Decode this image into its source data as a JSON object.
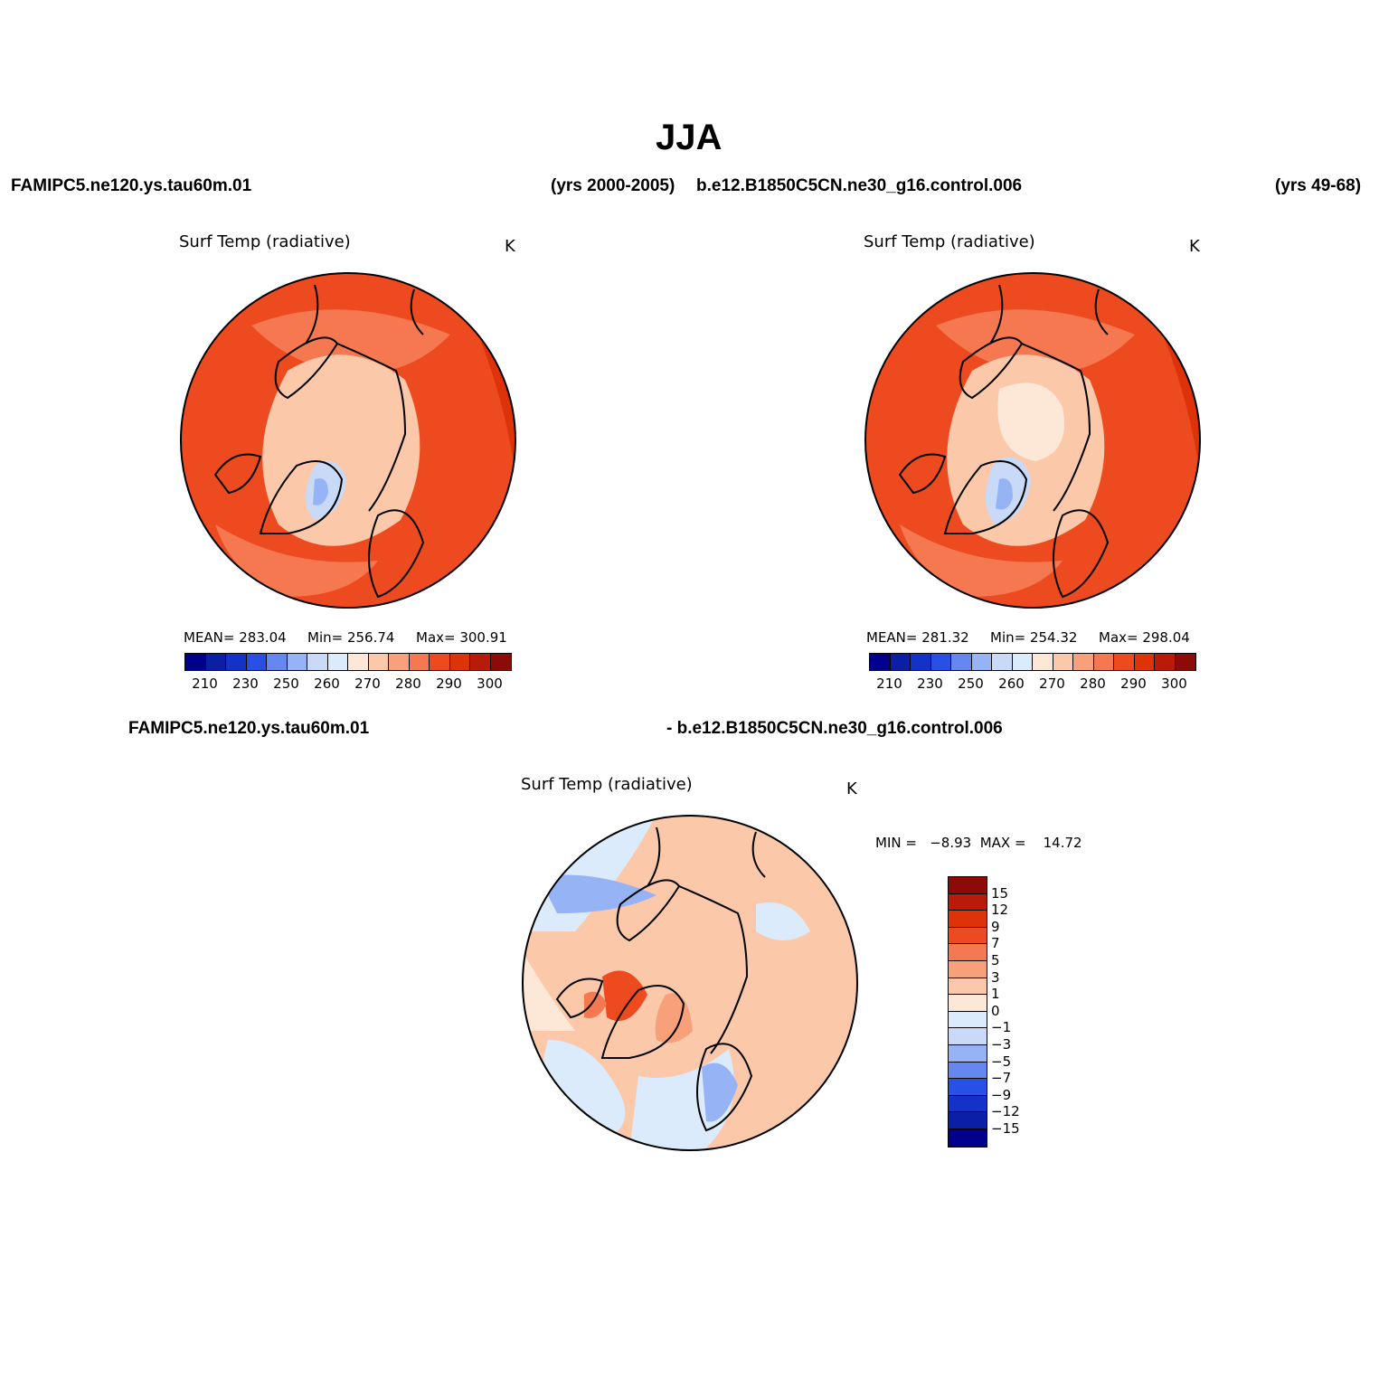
{
  "title": "JJA",
  "header": {
    "case1": "FAMIPC5.ne120.ys.tau60m.01",
    "years1": "(yrs 2000-2005)",
    "case2": "b.e12.B1850C5CN.ne30_g16.control.006",
    "years2": "(yrs 49-68)",
    "diff_case1": "FAMIPC5.ne120.ys.tau60m.01",
    "diff_case2": "- b.e12.B1850C5CN.ne30_g16.control.006"
  },
  "panels": [
    {
      "variable": "Surf Temp (radiative)",
      "units": "K",
      "stats": {
        "mean": "MEAN= 283.04",
        "min": "Min= 256.74",
        "max": "Max= 300.91"
      }
    },
    {
      "variable": "Surf Temp (radiative)",
      "units": "K",
      "stats": {
        "mean": "MEAN= 281.32",
        "min": "Min= 254.32",
        "max": "Max= 298.04"
      }
    },
    {
      "variable": "Surf Temp (radiative)",
      "units": "K",
      "stats": {
        "minmax": "MIN =   −8.93  MAX =    14.72"
      }
    }
  ],
  "colorbar_abs": {
    "colors": [
      "#00008c",
      "#0a1fa6",
      "#1432c8",
      "#2850e6",
      "#6488f0",
      "#96b4f5",
      "#c8daf8",
      "#dcebfb",
      "#fde8d8",
      "#fbc8aa",
      "#f8a07a",
      "#f57850",
      "#ee4a20",
      "#de3208",
      "#b81c08",
      "#8c0a08"
    ],
    "tick_labels": [
      "210",
      "230",
      "250",
      "260",
      "270",
      "280",
      "290",
      "300"
    ]
  },
  "colorbar_diff": {
    "colors": [
      "#8c0a08",
      "#b81c08",
      "#de3208",
      "#ee4a20",
      "#f57850",
      "#f8a07a",
      "#fbc8aa",
      "#fde8d8",
      "#dcebfb",
      "#c8daf8",
      "#96b4f5",
      "#6488f0",
      "#2850e6",
      "#1432c8",
      "#0a1fa6",
      "#00008c"
    ],
    "tick_labels": [
      "15",
      "12",
      "9",
      "7",
      "5",
      "3",
      "1",
      "0",
      "−1",
      "−3",
      "−5",
      "−7",
      "−9",
      "−12",
      "−15"
    ]
  }
}
